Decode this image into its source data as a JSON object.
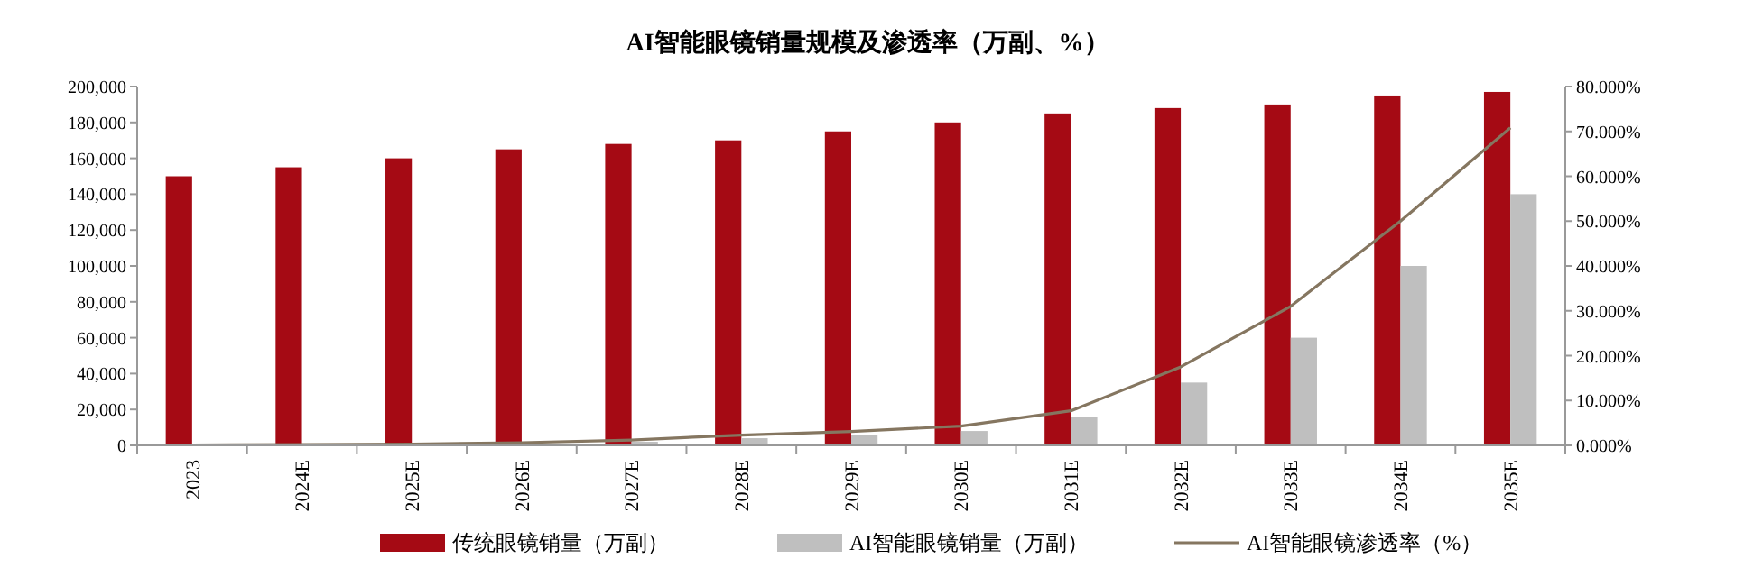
{
  "chart_data": {
    "type": "bar",
    "title": "AI智能眼镜销量规模及渗透率（万副、%）",
    "categories": [
      "2023",
      "2024E",
      "2025E",
      "2026E",
      "2027E",
      "2028E",
      "2029E",
      "2030E",
      "2031E",
      "2032E",
      "2033E",
      "2034E",
      "2035E"
    ],
    "series": [
      {
        "name": "传统眼镜销量（万副）",
        "color": "#a50a14",
        "values": [
          150000,
          155000,
          160000,
          165000,
          168000,
          170000,
          175000,
          180000,
          185000,
          188000,
          190000,
          195000,
          197000
        ]
      },
      {
        "name": "AI智能眼镜销量（万副）",
        "color": "#bfbfbf",
        "values": [
          null,
          null,
          null,
          null,
          2000,
          4000,
          6000,
          8000,
          16000,
          35000,
          60000,
          100000,
          140000
        ]
      },
      {
        "name": "AI智能眼镜渗透率（%）",
        "color": "#857660",
        "type": "line",
        "axis": "y2",
        "values": [
          0.1,
          0.2,
          0.3,
          0.6,
          1.2,
          2.3,
          3.1,
          4.3,
          7.7,
          17.5,
          31,
          50,
          70.8
        ]
      }
    ],
    "ylim": [
      0,
      200000
    ],
    "yticks": [
      {
        "value": 0,
        "label": "0"
      },
      {
        "value": 20000,
        "label": "20,000"
      },
      {
        "value": 40000,
        "label": "40,000"
      },
      {
        "value": 60000,
        "label": "60,000"
      },
      {
        "value": 80000,
        "label": "80,000"
      },
      {
        "value": 100000,
        "label": "100,000"
      },
      {
        "value": 120000,
        "label": "120,000"
      },
      {
        "value": 140000,
        "label": "140,000"
      },
      {
        "value": 160000,
        "label": "160,000"
      },
      {
        "value": 180000,
        "label": "180,000"
      },
      {
        "value": 200000,
        "label": "200,000"
      }
    ],
    "y2lim": [
      0,
      80
    ],
    "y2ticks": [
      {
        "value": 0,
        "label": "0.000%"
      },
      {
        "value": 10,
        "label": "10.000%"
      },
      {
        "value": 20,
        "label": "20.000%"
      },
      {
        "value": 30,
        "label": "30.000%"
      },
      {
        "value": 40,
        "label": "40.000%"
      },
      {
        "value": 50,
        "label": "50.000%"
      },
      {
        "value": 60,
        "label": "60.000%"
      },
      {
        "value": 70,
        "label": "70.000%"
      },
      {
        "value": 80,
        "label": "80.000%"
      }
    ],
    "legend": "bottom",
    "grid": false,
    "marker": "none",
    "line_style": "solid"
  }
}
